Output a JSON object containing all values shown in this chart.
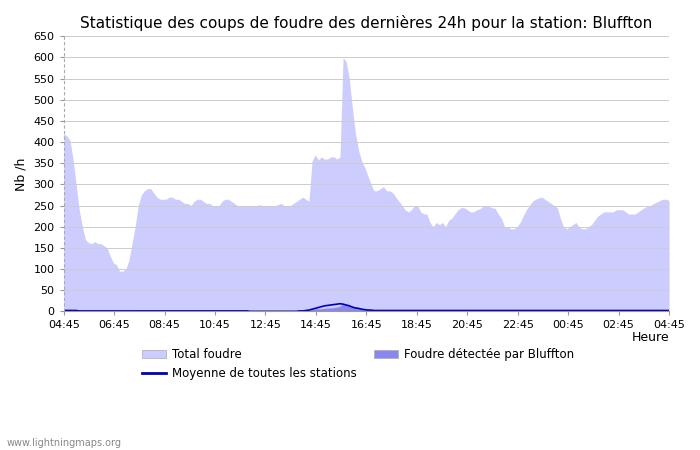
{
  "title": "Statistique des coups de foudre des dernières 24h pour la station: Bluffton",
  "xlabel": "Heure",
  "ylabel": "Nb /h",
  "watermark": "www.lightningmaps.org",
  "ylim": [
    0,
    650
  ],
  "yticks": [
    0,
    50,
    100,
    150,
    200,
    250,
    300,
    350,
    400,
    450,
    500,
    550,
    600,
    650
  ],
  "xtick_labels": [
    "04:45",
    "06:45",
    "08:45",
    "10:45",
    "12:45",
    "14:45",
    "16:45",
    "18:45",
    "20:45",
    "22:45",
    "00:45",
    "02:45",
    "04:45"
  ],
  "total_foudre_color": "#ccccff",
  "bluffton_color": "#8888ee",
  "moyenne_color": "#0000bb",
  "background_color": "#ffffff",
  "grid_color": "#cccccc",
  "title_fontsize": 11,
  "legend_fontsize": 8.5,
  "total_foudre": [
    420,
    415,
    405,
    360,
    300,
    240,
    200,
    170,
    162,
    160,
    165,
    160,
    160,
    155,
    150,
    130,
    115,
    110,
    95,
    95,
    100,
    120,
    160,
    200,
    250,
    275,
    285,
    290,
    290,
    280,
    270,
    265,
    265,
    265,
    270,
    270,
    265,
    265,
    260,
    255,
    255,
    250,
    260,
    265,
    265,
    260,
    255,
    255,
    250,
    250,
    250,
    260,
    265,
    265,
    260,
    255,
    250,
    250,
    250,
    250,
    248,
    248,
    250,
    252,
    250,
    248,
    248,
    250,
    250,
    252,
    255,
    250,
    250,
    250,
    255,
    260,
    265,
    270,
    265,
    260,
    355,
    370,
    358,
    365,
    360,
    360,
    365,
    365,
    360,
    365,
    600,
    590,
    550,
    480,
    420,
    380,
    355,
    340,
    320,
    300,
    285,
    285,
    290,
    295,
    285,
    285,
    280,
    270,
    260,
    250,
    240,
    235,
    240,
    250,
    250,
    235,
    230,
    230,
    210,
    200,
    210,
    205,
    210,
    200,
    215,
    220,
    230,
    240,
    245,
    245,
    240,
    235,
    235,
    240,
    242,
    248,
    250,
    248,
    245,
    243,
    230,
    220,
    200,
    200,
    195,
    195,
    200,
    210,
    225,
    240,
    250,
    260,
    265,
    268,
    270,
    265,
    260,
    255,
    250,
    245,
    220,
    200,
    195,
    200,
    205,
    210,
    200,
    195,
    195,
    200,
    205,
    215,
    225,
    230,
    235,
    235,
    235,
    235,
    240,
    240,
    240,
    235,
    230,
    230,
    230,
    235,
    240,
    245,
    248,
    250,
    255,
    258,
    262,
    265,
    265,
    262
  ],
  "bluffton_detected": [
    5,
    5,
    5,
    4,
    3,
    2,
    2,
    2,
    2,
    2,
    2,
    2,
    2,
    1,
    1,
    1,
    1,
    1,
    1,
    1,
    1,
    1,
    2,
    2,
    2,
    3,
    3,
    3,
    3,
    3,
    3,
    3,
    3,
    3,
    3,
    3,
    3,
    3,
    3,
    3,
    3,
    3,
    3,
    3,
    3,
    3,
    3,
    3,
    3,
    3,
    3,
    3,
    3,
    3,
    3,
    3,
    3,
    3,
    3,
    3,
    2,
    2,
    2,
    2,
    2,
    2,
    2,
    2,
    2,
    2,
    2,
    2,
    2,
    2,
    2,
    2,
    3,
    3,
    3,
    3,
    5,
    6,
    6,
    6,
    7,
    8,
    8,
    9,
    10,
    12,
    18,
    17,
    15,
    12,
    10,
    8,
    7,
    6,
    5,
    4,
    4,
    4,
    4,
    4,
    4,
    4,
    4,
    3,
    3,
    3,
    3,
    3,
    3,
    3,
    3,
    2,
    2,
    2,
    2,
    2,
    2,
    2,
    2,
    2,
    2,
    2,
    2,
    2,
    2,
    2,
    2,
    2,
    2,
    2,
    2,
    2,
    2,
    2,
    2,
    2,
    2,
    2,
    2,
    2,
    2,
    2,
    2,
    2,
    2,
    2,
    2,
    2,
    2,
    2,
    2,
    2,
    2,
    2,
    2,
    2,
    2,
    2,
    2,
    2,
    2,
    2,
    2,
    2,
    2,
    2,
    2,
    2,
    2,
    2,
    2,
    2,
    2,
    2,
    2,
    2,
    2,
    2,
    2,
    2,
    2,
    2,
    2,
    2,
    2,
    2,
    2,
    2,
    2,
    2,
    2,
    2
  ],
  "moyenne": [
    2,
    2,
    2,
    2,
    2,
    1,
    1,
    1,
    1,
    1,
    1,
    1,
    1,
    1,
    1,
    1,
    1,
    1,
    1,
    1,
    1,
    1,
    1,
    1,
    1,
    1,
    1,
    1,
    1,
    1,
    1,
    1,
    1,
    1,
    1,
    1,
    1,
    1,
    1,
    1,
    1,
    1,
    1,
    1,
    1,
    1,
    1,
    1,
    1,
    1,
    1,
    1,
    1,
    1,
    1,
    1,
    1,
    1,
    1,
    1,
    0,
    0,
    0,
    0,
    0,
    0,
    0,
    0,
    0,
    0,
    0,
    0,
    0,
    0,
    0,
    0,
    1,
    1,
    2,
    3,
    5,
    7,
    9,
    11,
    13,
    14,
    15,
    16,
    17,
    18,
    17,
    15,
    13,
    10,
    8,
    7,
    5,
    4,
    3,
    3,
    2,
    2,
    2,
    2,
    2,
    2,
    2,
    2,
    2,
    2,
    2,
    2,
    2,
    2,
    2,
    2,
    2,
    2,
    2,
    2,
    2,
    2,
    2,
    2,
    2,
    2,
    2,
    2,
    2,
    2,
    2,
    2,
    2,
    2,
    2,
    2,
    2,
    2,
    2,
    2,
    2,
    2,
    2,
    2,
    2,
    2,
    2,
    2,
    2,
    2,
    2,
    2,
    2,
    2,
    2,
    2,
    2,
    2,
    2,
    2,
    2,
    2,
    2,
    2,
    2,
    2,
    2,
    2,
    2,
    2,
    2,
    2,
    2,
    2,
    2,
    2,
    2,
    2,
    2,
    2,
    2,
    2,
    2,
    2,
    2,
    2,
    2,
    2,
    2,
    2,
    2,
    2,
    2,
    2,
    2,
    2
  ]
}
